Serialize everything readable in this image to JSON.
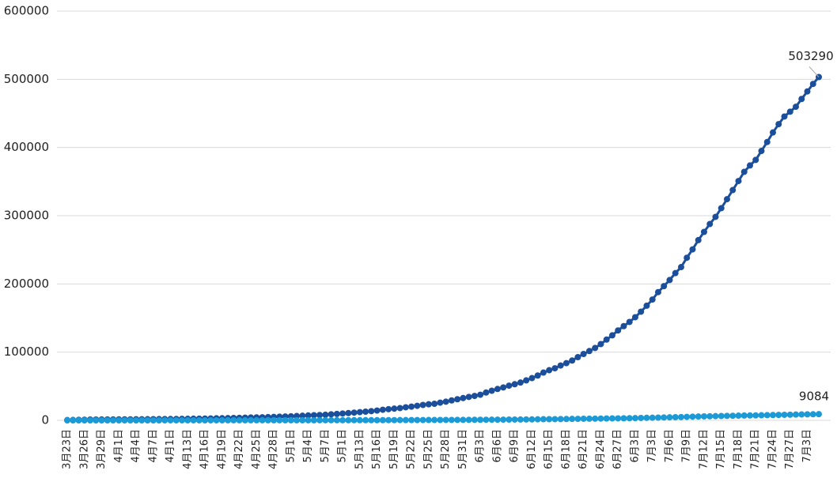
{
  "chart_data": {
    "type": "line",
    "categories": [
      "3月23日",
      null,
      null,
      "3月26日",
      null,
      null,
      "3月29日",
      null,
      null,
      "4月1日",
      null,
      null,
      "4月4日",
      null,
      null,
      "4月7日",
      null,
      null,
      "4月1日",
      null,
      null,
      "4月13日",
      null,
      null,
      "4月16日",
      null,
      null,
      "4月19日",
      null,
      null,
      "4月22日",
      null,
      null,
      "4月25日",
      null,
      null,
      "4月28日",
      null,
      null,
      "5月1日",
      null,
      null,
      "5月4日",
      null,
      null,
      "5月7日",
      null,
      null,
      "5月1日",
      null,
      null,
      "5月13日",
      null,
      null,
      "5月16日",
      null,
      null,
      "5月19日",
      null,
      null,
      "5月22日",
      null,
      null,
      "5月25日",
      null,
      null,
      "5月28日",
      null,
      null,
      "5月31日",
      null,
      null,
      "6月3日",
      null,
      null,
      "6月6日",
      null,
      null,
      "6月9日",
      null,
      null,
      "6月12日",
      null,
      null,
      "6月15日",
      null,
      null,
      "6月18日",
      null,
      null,
      "6月21日",
      null,
      null,
      "6月24日",
      null,
      null,
      "6月27日",
      null,
      null,
      "6月3日",
      null,
      null,
      "7月3日",
      null,
      null,
      "7月6日",
      null,
      null,
      "7月9日",
      null,
      null,
      "7月12日",
      null,
      null,
      "7月15日",
      null,
      null,
      "7月18日",
      null,
      null,
      "7月21日",
      null,
      null,
      "7月24日",
      null,
      null,
      "7月27日",
      null,
      null,
      "7月3日",
      null,
      null
    ],
    "series": [
      {
        "color": "#1c4f9b",
        "values": [
          402,
          554,
          709,
          927,
          1170,
          1187,
          1280,
          1326,
          1353,
          1380,
          1462,
          1505,
          1585,
          1655,
          1686,
          1749,
          1845,
          1934,
          2003,
          2028,
          2173,
          2272,
          2415,
          2506,
          2605,
          2783,
          3034,
          3158,
          3300,
          3465,
          3635,
          3953,
          4220,
          4361,
          4546,
          4793,
          4996,
          5350,
          5647,
          5951,
          6336,
          6783,
          7220,
          7572,
          7808,
          8232,
          8895,
          9420,
          10015,
          10652,
          11350,
          12074,
          12739,
          13524,
          14355,
          15515,
          16433,
          17200,
          18003,
          19137,
          20125,
          21343,
          22583,
          23615,
          24264,
          25937,
          27403,
          29240,
          30967,
          32683,
          34357,
          35812,
          37525,
          40792,
          43434,
          45973,
          48285,
          50879,
          52991,
          55421,
          58568,
          61927,
          65736,
          70038,
          73533,
          76334,
          80412,
          83890,
          87715,
          92681,
          97302,
          101590,
          106108,
          111796,
          118375,
          124590,
          131800,
          138134,
          144264,
          151209,
          159333,
          168061,
          177124,
          187977,
          196750,
          205721,
          215855,
          224665,
          238339,
          250687,
          264184,
          276242,
          287796,
          298292,
          311049,
          324221,
          337594,
          350879,
          364328,
          373628,
          381798,
          394948,
          408052,
          421996,
          434200,
          445433,
          452529,
          459761,
          471123,
          482169,
          493183,
          503290
        ]
      },
      {
        "color": "#1c9ad6",
        "values": [
          0,
          0,
          0,
          1,
          1,
          1,
          2,
          3,
          5,
          5,
          5,
          9,
          9,
          11,
          12,
          13,
          18,
          24,
          25,
          27,
          34,
          48,
          48,
          48,
          52,
          58,
          58,
          65,
          79,
          79,
          86,
          86,
          87,
          90,
          93,
          103,
          103,
          116,
          116,
          131,
          138,
          148,
          153,
          161,
          164,
          171,
          178,
          186,
          194,
          206,
          219,
          238,
          247,
          261,
          264,
          286,
          312,
          339,
          369,
          407,
          429,
          452,
          481,
          524,
          552,
          577,
          611,
          643,
          683,
          705,
          792,
          848,
          880,
          935,
          952,
          998,
          1080,
          1162,
          1210,
          1284,
          1354,
          1423,
          1568,
          1674,
          1734,
          1786,
          1877,
          1991,
          2102,
          2205,
          2340,
          2413,
          2529,
          2657,
          2749,
          2844,
          2952,
          3026,
          3199,
          3310,
          3500,
          3720,
          3860,
          4060,
          4230,
          4420,
          4650,
          4850,
          5100,
          5380,
          5620,
          5820,
          5990,
          6180,
          6380,
          6550,
          6730,
          6900,
          7080,
          7200,
          7310,
          7480,
          7620,
          7800,
          7950,
          8150,
          8310,
          8480,
          8650,
          8820,
          8950,
          9084
        ]
      }
    ],
    "ylim": [
      0,
      600000
    ],
    "yticks": [
      0,
      100000,
      200000,
      300000,
      400000,
      500000,
      600000
    ],
    "grid": true
  }
}
